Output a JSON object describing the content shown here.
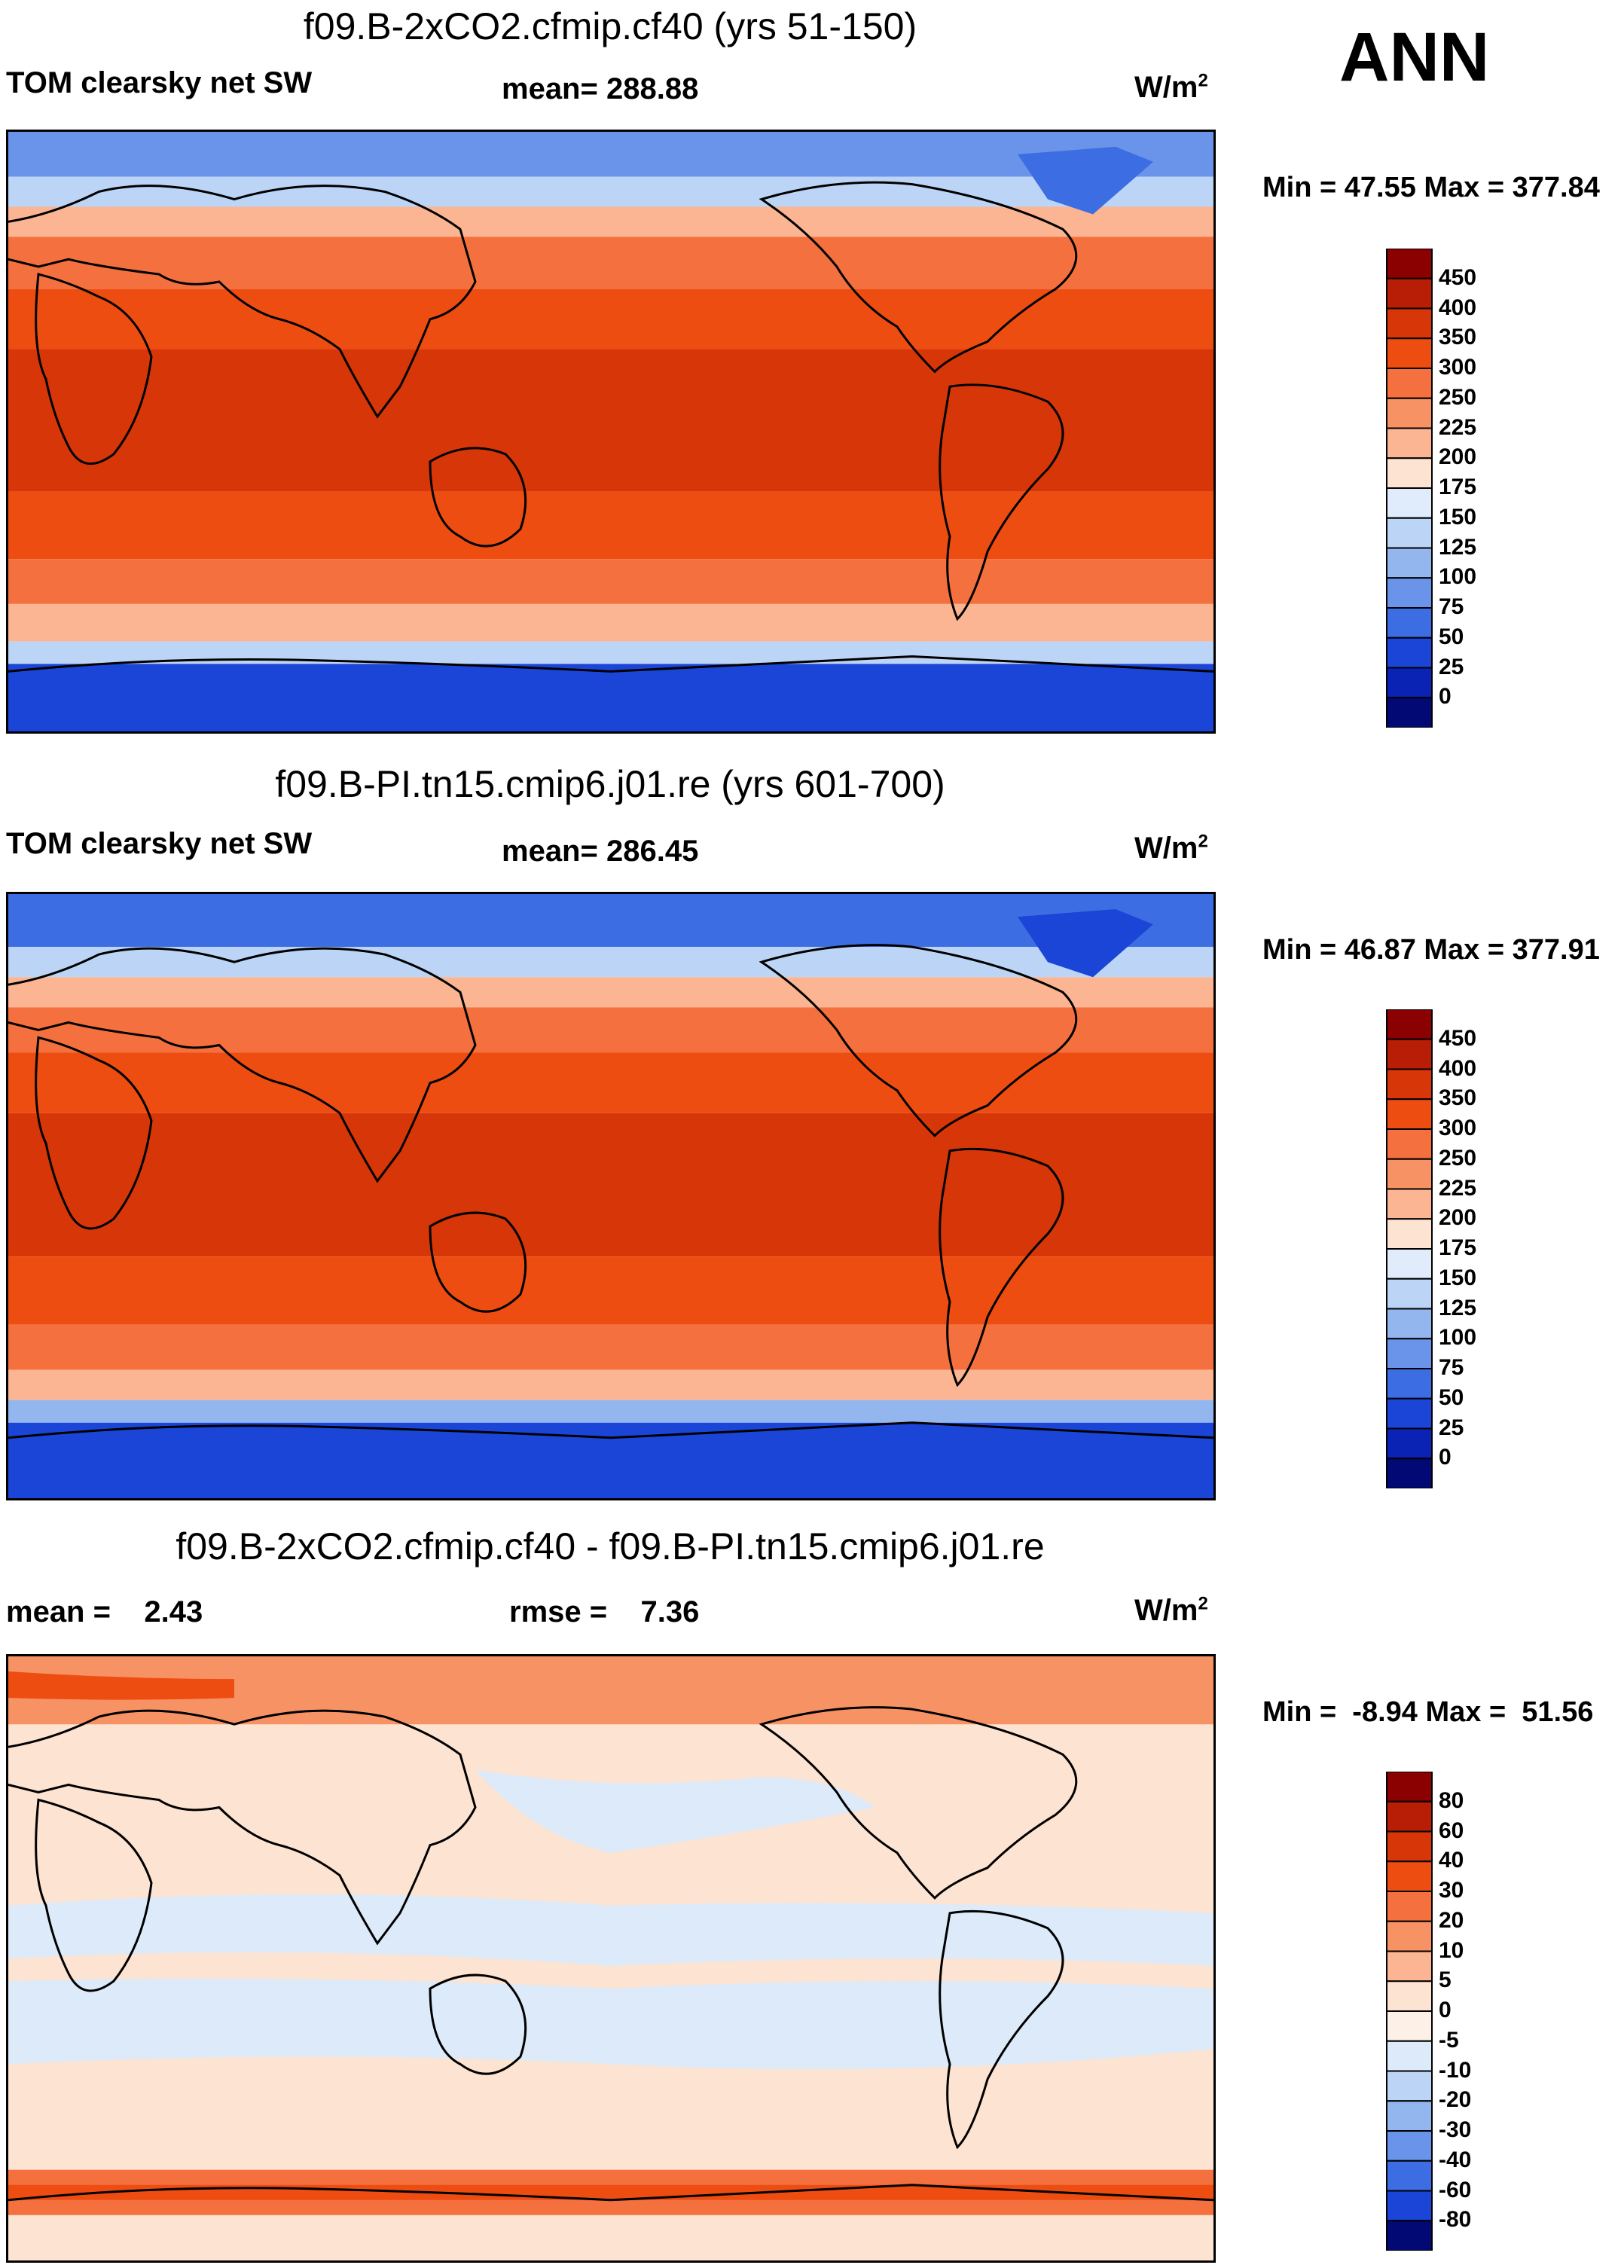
{
  "season": "ANN",
  "panels": [
    {
      "title": "f09.B-2xCO2.cfmip.cf40 (yrs 51-150)",
      "left_label": "TOM clearsky net SW",
      "center_label": "mean= 288.88",
      "units": "W/m",
      "units_exp": "2",
      "minmax": "Min =  47.55 Max = 377.84",
      "colorbar_ticks": [
        "450",
        "400",
        "350",
        "300",
        "250",
        "225",
        "200",
        "175",
        "150",
        "125",
        "100",
        "75",
        "50",
        "25",
        "0"
      ]
    },
    {
      "title": "f09.B-PI.tn15.cmip6.j01.re (yrs 601-700)",
      "left_label": "TOM clearsky net SW",
      "center_label": "mean= 286.45",
      "units": "W/m",
      "units_exp": "2",
      "minmax": "Min =  46.87 Max = 377.91",
      "colorbar_ticks": [
        "450",
        "400",
        "350",
        "300",
        "250",
        "225",
        "200",
        "175",
        "150",
        "125",
        "100",
        "75",
        "50",
        "25",
        "0"
      ]
    },
    {
      "title": "f09.B-2xCO2.cfmip.cf40 - f09.B-PI.tn15.cmip6.j01.re",
      "left_label": "mean =    2.43",
      "center_label": "rmse =    7.36",
      "units": "W/m",
      "units_exp": "2",
      "minmax": "Min =  -8.94 Max =  51.56",
      "colorbar_ticks": [
        "80",
        "60",
        "40",
        "30",
        "20",
        "10",
        "5",
        "0",
        "-5",
        "-10",
        "-20",
        "-30",
        "-40",
        "-60",
        "-80"
      ]
    }
  ],
  "colors": {
    "abs_colorbar": [
      "#8b0000",
      "#b81d06",
      "#d73608",
      "#ee4d12",
      "#f4703e",
      "#f79264",
      "#fbb592",
      "#fde3d1",
      "#e0ecfb",
      "#bcd4f5",
      "#93b6ef",
      "#6a94ea",
      "#3d6de3",
      "#1a45d6",
      "#0a23b5",
      "#020874"
    ],
    "diff_colorbar": [
      "#8b0000",
      "#b81d06",
      "#d73608",
      "#ee4d12",
      "#f4703e",
      "#f79264",
      "#fbb592",
      "#fde3d1",
      "#fdf0e6",
      "#dceaf9",
      "#bcd4f5",
      "#93b6ef",
      "#6a94ea",
      "#3d6de3",
      "#1a45d6",
      "#020874"
    ],
    "coastline": "#000000"
  }
}
